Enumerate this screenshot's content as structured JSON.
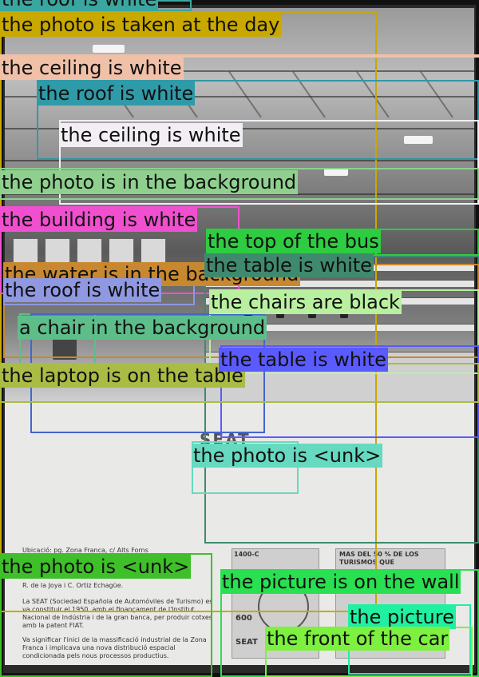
{
  "poster": {
    "heading": "Ubicació: pg. Zona Franca, c/ Alts Forns",
    "credits": "R. de la Joya i C. Ortiz Echagüe.",
    "paragraph1": "La SEAT (Sociedad Española de Automóviles de Turismo) es va constituir el 1950, amb el finançament de l'Institut Nacional de Indústria i de la gran banca, per produir cotxes amb la patent FIAT.",
    "paragraph2": "Va significar l'inici de la massificació industrial de la Zona Franca i implicava una nova distribució espacial condicionada pels nous processos productius.",
    "thumb1_caption": "1400-C",
    "thumb1_model": "600",
    "thumb1_brand": "SEAT",
    "thumb2_text": "MAS DEL 50 % DE LOS TURISMOS QUE",
    "logo": "SEAT"
  },
  "annotations": [
    {
      "label": "the roof is white",
      "color": "#3aa6a0"
    },
    {
      "label": "the photo is taken at the day",
      "color": "#c9a800"
    },
    {
      "label": "the ceiling is white",
      "color": "#f0c0a8"
    },
    {
      "label": "the roof is white",
      "color": "#2f9aa8"
    },
    {
      "label": "the ceiling is white",
      "color": "#f2eef4"
    },
    {
      "label": "the photo is in the background",
      "color": "#8fd08f"
    },
    {
      "label": "the building is white",
      "color": "#f050d0"
    },
    {
      "label": "the top of the bus",
      "color": "#2ecc40"
    },
    {
      "label": "the table is white",
      "color": "#3f8a6e"
    },
    {
      "label": "the water is in the background",
      "color": "#c8882f"
    },
    {
      "label": "the roof is white",
      "color": "#8f98e0"
    },
    {
      "label": "the chairs are black",
      "color": "#b8f0a0"
    },
    {
      "label": "a chair in the background",
      "color": "#5dbe8a"
    },
    {
      "label": "the table is white",
      "color": "#5a5aff"
    },
    {
      "label": "the laptop is on the table",
      "color": "#aabc44"
    },
    {
      "label": "the photo is <unk>",
      "color": "#66d9c0"
    },
    {
      "label": "the photo is <unk>",
      "color": "#3fbf2a"
    },
    {
      "label": "the picture is on the wall",
      "color": "#28e050"
    },
    {
      "label": "the picture",
      "color": "#20f0a0"
    },
    {
      "label": "the front of the car",
      "color": "#7df040"
    }
  ]
}
